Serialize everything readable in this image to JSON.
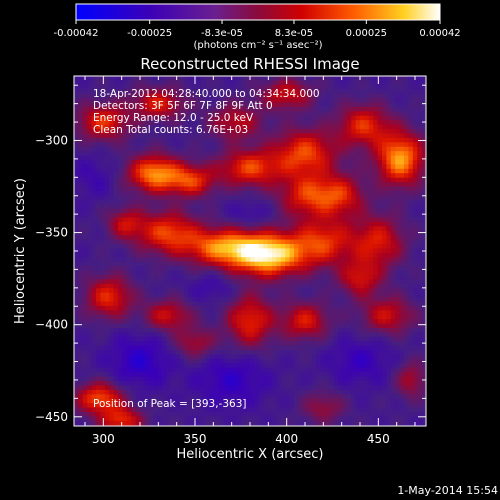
{
  "chart_data": {
    "type": "heatmap",
    "title": "Reconstructed RHESSI Image",
    "xlabel": "Heliocentric X (arcsec)",
    "ylabel": "Heliocentric Y (arcsec)",
    "xlim": [
      284,
      476
    ],
    "ylim": [
      -455,
      -265
    ],
    "xticks": [
      300,
      350,
      400,
      450
    ],
    "yticks": [
      -300,
      -350,
      -400,
      -450
    ],
    "colorbar": {
      "min": -0.00042,
      "max": 0.00042,
      "colormap": "blue-purple-red-yellow-white",
      "ticks": [
        "-0.00042",
        "-0.00025",
        "-8.3e-05",
        "8.3e-05",
        "0.00025",
        "0.00042"
      ],
      "tick_values": [
        -0.00042,
        -0.00025,
        -8.3e-05,
        8.3e-05,
        0.00025,
        0.00042
      ],
      "unit_label": "(photons cm⁻² s⁻¹ asec⁻²)"
    },
    "annotations": [
      "18-Apr-2012 04:28:40.000 to 04:34:34.000",
      "Detectors: 3F 5F 6F 7F 8F 9F  Att 0",
      "Energy Range: 12.0 - 25.0 keV",
      "Clean     Total counts: 6.76E+03"
    ],
    "peak_label": "Position of Peak = [393,-363]",
    "peak": {
      "x": 393,
      "y": -363
    },
    "grid": false,
    "sources": [
      {
        "x": 390,
        "y": -362,
        "amp": 1.0,
        "sx": 14,
        "sy": 8
      },
      {
        "x": 365,
        "y": -358,
        "amp": 0.7,
        "sx": 14,
        "sy": 7
      },
      {
        "x": 335,
        "y": -350,
        "amp": 0.6,
        "sx": 12,
        "sy": 8
      },
      {
        "x": 420,
        "y": -355,
        "amp": 0.55,
        "sx": 12,
        "sy": 9
      },
      {
        "x": 450,
        "y": -355,
        "amp": 0.5,
        "sx": 10,
        "sy": 10
      },
      {
        "x": 412,
        "y": -330,
        "amp": 0.55,
        "sx": 11,
        "sy": 8
      },
      {
        "x": 410,
        "y": -307,
        "amp": 0.62,
        "sx": 12,
        "sy": 9
      },
      {
        "x": 462,
        "y": -310,
        "amp": 0.82,
        "sx": 9,
        "sy": 10
      },
      {
        "x": 442,
        "y": -292,
        "amp": 0.55,
        "sx": 10,
        "sy": 8
      },
      {
        "x": 380,
        "y": -315,
        "amp": 0.6,
        "sx": 12,
        "sy": 7
      },
      {
        "x": 328,
        "y": -318,
        "amp": 0.78,
        "sx": 10,
        "sy": 7
      },
      {
        "x": 348,
        "y": -322,
        "amp": 0.55,
        "sx": 9,
        "sy": 6
      },
      {
        "x": 430,
        "y": -330,
        "amp": 0.45,
        "sx": 9,
        "sy": 8
      },
      {
        "x": 312,
        "y": -345,
        "amp": 0.4,
        "sx": 7,
        "sy": 6
      },
      {
        "x": 303,
        "y": -385,
        "amp": 0.55,
        "sx": 9,
        "sy": 8
      },
      {
        "x": 335,
        "y": -395,
        "amp": 0.45,
        "sx": 9,
        "sy": 6
      },
      {
        "x": 380,
        "y": -398,
        "amp": 0.55,
        "sx": 9,
        "sy": 10
      },
      {
        "x": 410,
        "y": -398,
        "amp": 0.5,
        "sx": 9,
        "sy": 7
      },
      {
        "x": 455,
        "y": -395,
        "amp": 0.45,
        "sx": 10,
        "sy": 7
      },
      {
        "x": 350,
        "y": -410,
        "amp": 0.35,
        "sx": 8,
        "sy": 6
      },
      {
        "x": 298,
        "y": -440,
        "amp": 0.65,
        "sx": 9,
        "sy": 6
      },
      {
        "x": 310,
        "y": -452,
        "amp": 0.55,
        "sx": 8,
        "sy": 5
      },
      {
        "x": 468,
        "y": -430,
        "amp": 0.35,
        "sx": 6,
        "sy": 7
      },
      {
        "x": 300,
        "y": -290,
        "amp": 0.55,
        "sx": 10,
        "sy": 7
      },
      {
        "x": 330,
        "y": -280,
        "amp": 0.5,
        "sx": 10,
        "sy": 6
      },
      {
        "x": 400,
        "y": -275,
        "amp": 0.45,
        "sx": 10,
        "sy": 6
      },
      {
        "x": 372,
        "y": -290,
        "amp": 0.4,
        "sx": 10,
        "sy": 7
      },
      {
        "x": 440,
        "y": -375,
        "amp": 0.45,
        "sx": 8,
        "sy": 7
      },
      {
        "x": 420,
        "y": -445,
        "amp": 0.3,
        "sx": 8,
        "sy": 6
      }
    ],
    "dips": [
      {
        "x": 320,
        "y": -420,
        "amp": 0.8,
        "sx": 12,
        "sy": 10
      },
      {
        "x": 370,
        "y": -430,
        "amp": 0.7,
        "sx": 14,
        "sy": 10
      },
      {
        "x": 440,
        "y": -420,
        "amp": 0.6,
        "sx": 12,
        "sy": 9
      },
      {
        "x": 380,
        "y": -340,
        "amp": 0.4,
        "sx": 8,
        "sy": 5
      },
      {
        "x": 295,
        "y": -320,
        "amp": 0.4,
        "sx": 8,
        "sy": 8
      },
      {
        "x": 360,
        "y": -380,
        "amp": 0.4,
        "sx": 9,
        "sy": 6
      }
    ]
  },
  "footer": {
    "date": "1-May-2014 15:54"
  }
}
